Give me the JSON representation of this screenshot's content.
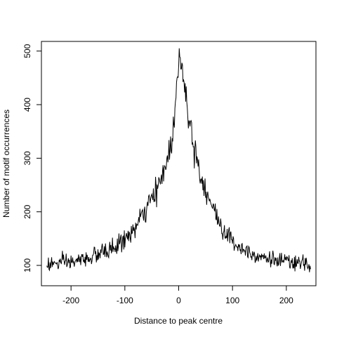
{
  "chart_data": {
    "type": "line",
    "title": "",
    "xlabel": "Distance to peak centre",
    "ylabel": "Number of motif occurrences",
    "xlim": [
      -255,
      255
    ],
    "ylim": [
      62,
      518
    ],
    "x_ticks": [
      -200,
      -100,
      0,
      100,
      200
    ],
    "x_tick_labels": [
      "-200",
      "-100",
      "0",
      "100",
      "200"
    ],
    "y_ticks": [
      100,
      200,
      300,
      400,
      500
    ],
    "y_tick_labels": [
      "100",
      "200",
      "300",
      "400",
      "500"
    ],
    "grid": false,
    "legend": "none",
    "line_color": "#000000",
    "x_range": [
      -245,
      245
    ],
    "anchor_x": [
      -245,
      -230,
      -200,
      -180,
      -150,
      -120,
      -100,
      -80,
      -60,
      -40,
      -20,
      -10,
      -5,
      0,
      5,
      10,
      15,
      20,
      30,
      40,
      60,
      80,
      100,
      120,
      150,
      180,
      200,
      220,
      245
    ],
    "anchor_y": [
      102,
      103,
      106,
      110,
      120,
      133,
      148,
      170,
      205,
      240,
      300,
      350,
      420,
      470,
      495,
      450,
      400,
      370,
      320,
      270,
      215,
      170,
      145,
      130,
      118,
      110,
      106,
      103,
      102
    ]
  }
}
